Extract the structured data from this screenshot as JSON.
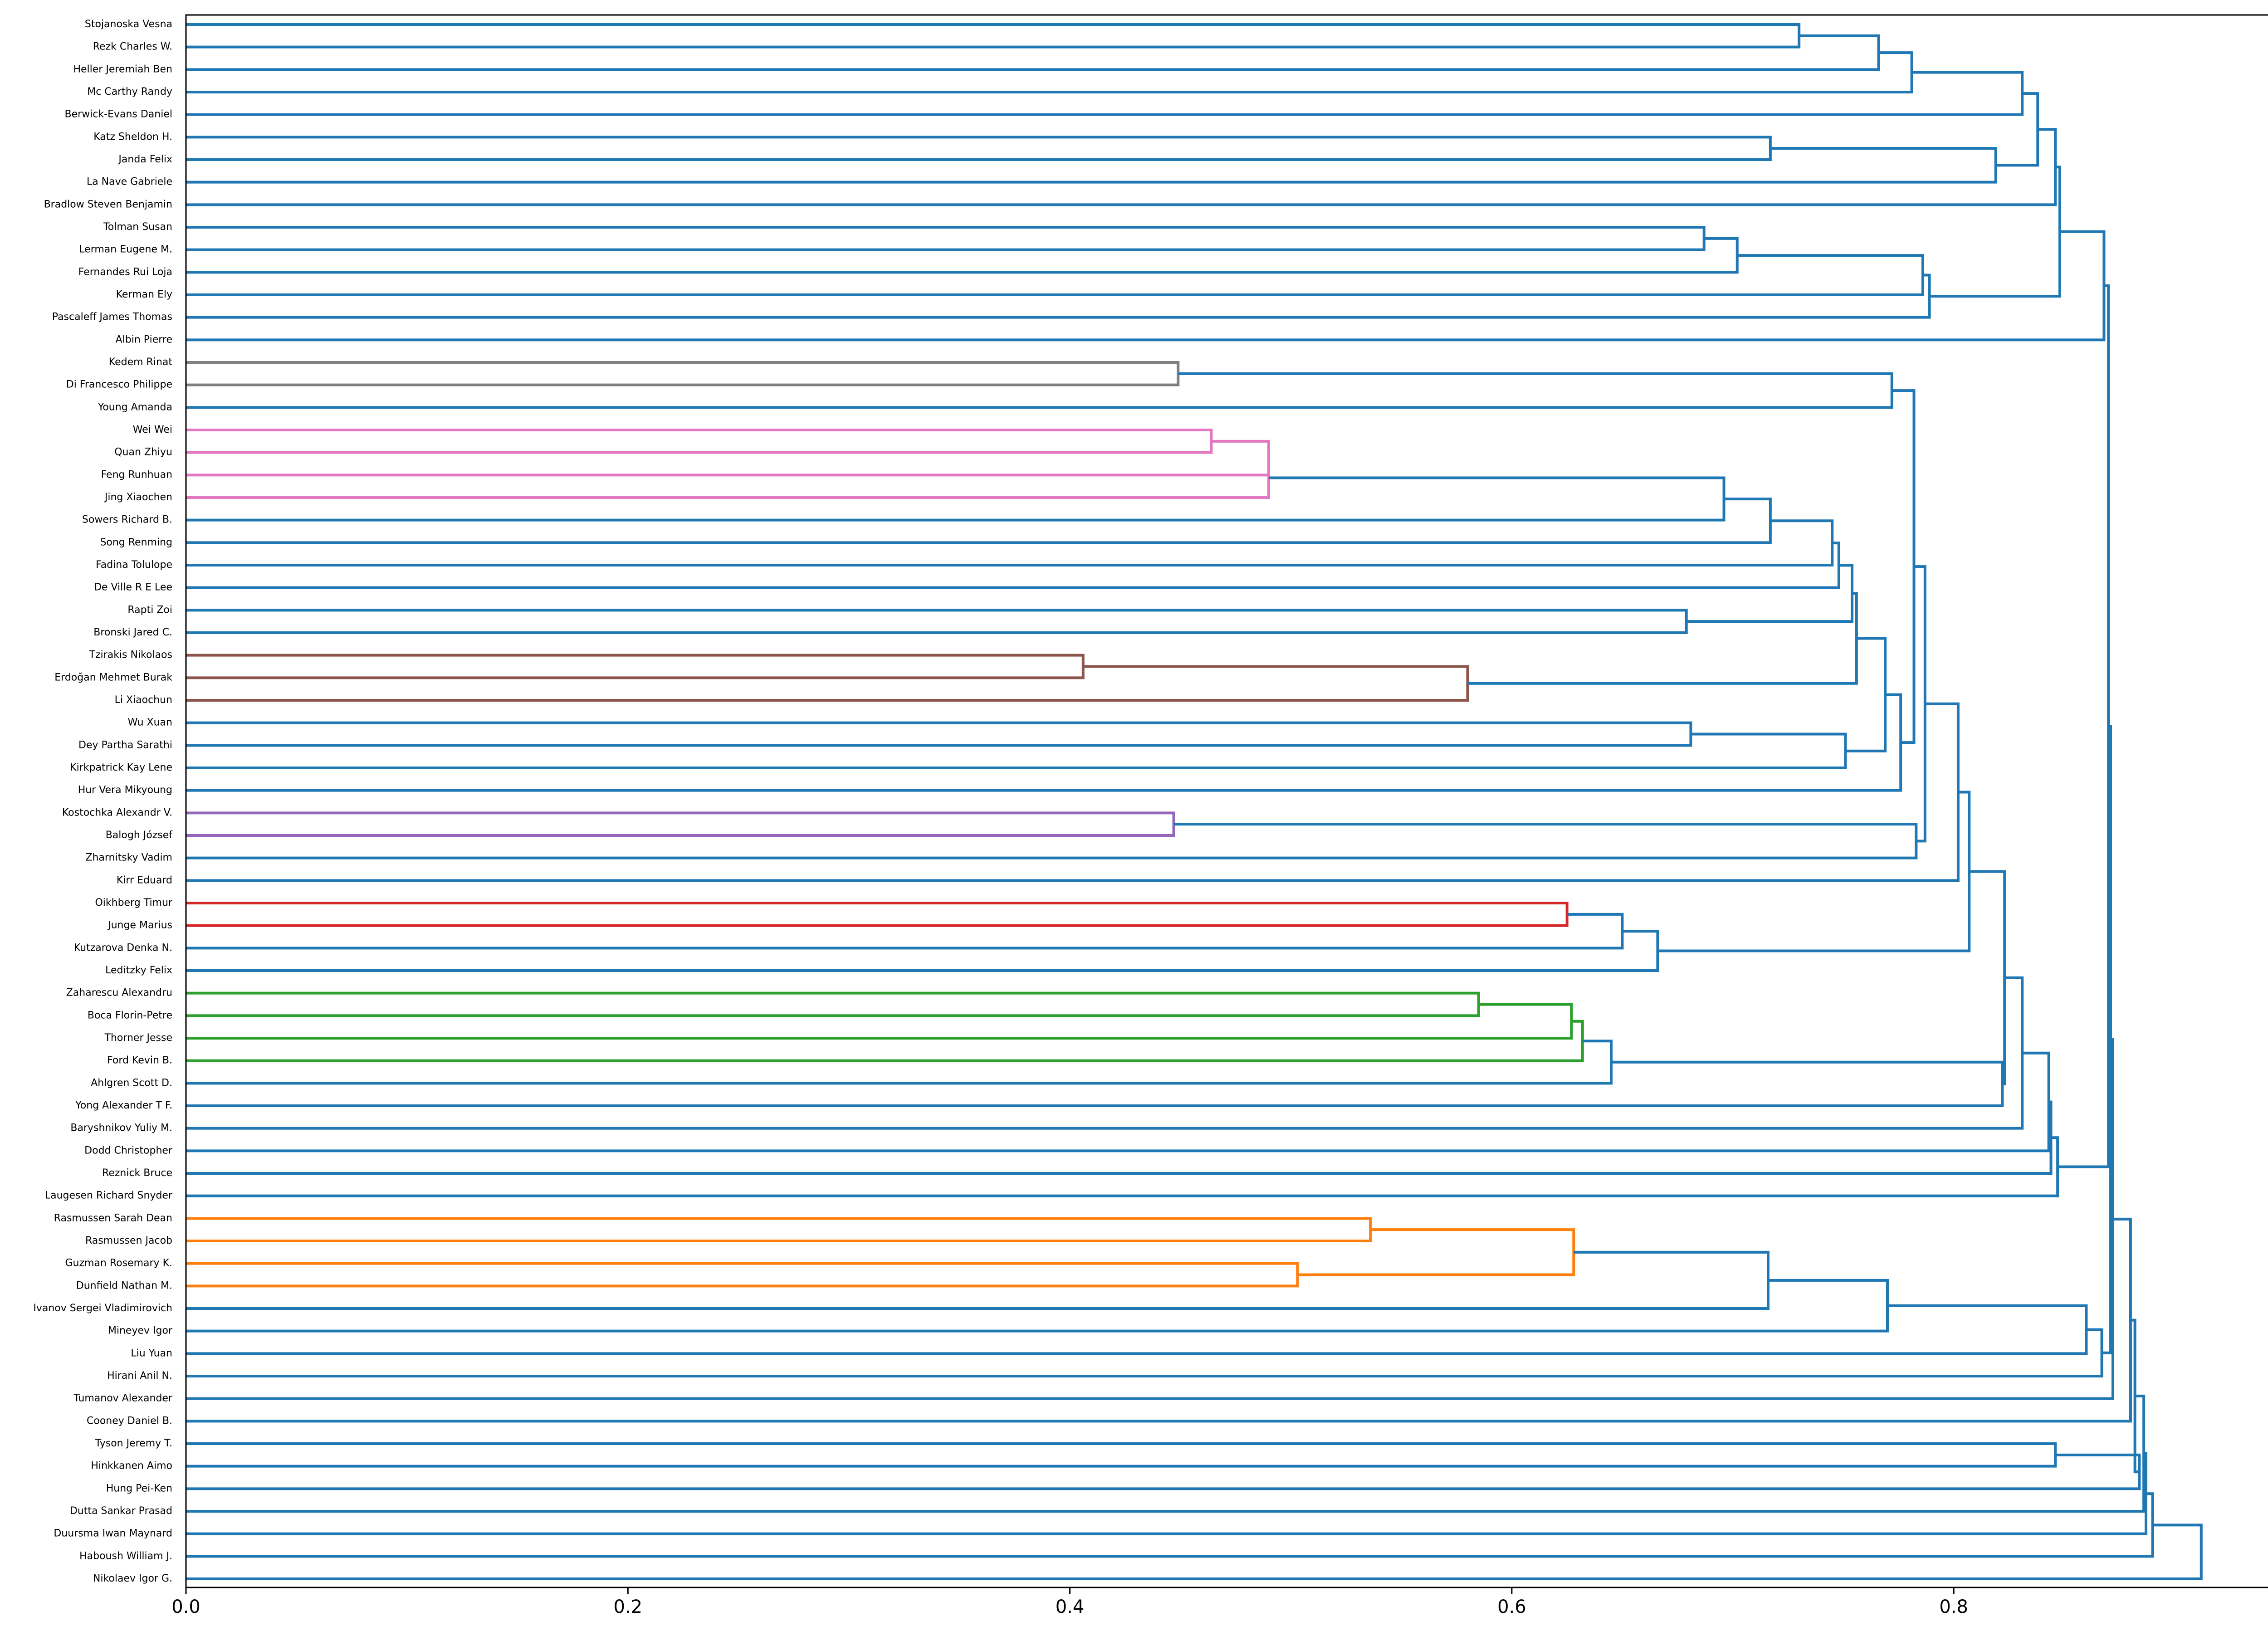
{
  "chart_data": {
    "type": "dendrogram",
    "orientation": "horizontal",
    "xlim": [
      0.0,
      0.957
    ],
    "x_ticks": [
      0.0,
      0.2,
      0.4,
      0.6,
      0.8
    ],
    "x_tick_labels": [
      "0.0",
      "0.2",
      "0.4",
      "0.6",
      "0.8"
    ],
    "title": "",
    "xlabel": "",
    "ylabel": "",
    "grid": false,
    "colors": {
      "default": "#1f77b4",
      "orange": "#ff7f0e",
      "green": "#2ca02c",
      "red": "#d62728",
      "purple": "#9467bd",
      "brown": "#8c564b",
      "pink": "#e377c2",
      "gray": "#7f7f7f"
    },
    "leaves": [
      "Stojanoska Vesna",
      "Rezk Charles W.",
      "Heller Jeremiah Ben",
      "Mc Carthy Randy",
      "Berwick-Evans Daniel",
      "Katz Sheldon H.",
      "Janda Felix",
      "La Nave Gabriele",
      "Bradlow Steven Benjamin",
      "Tolman Susan",
      "Lerman Eugene M.",
      "Fernandes Rui Loja",
      "Kerman Ely",
      "Pascaleff James Thomas",
      "Albin Pierre",
      "Kedem Rinat",
      "Di Francesco Philippe",
      "Young Amanda",
      "Wei Wei",
      "Quan Zhiyu",
      "Feng Runhuan",
      "Jing Xiaochen",
      "Sowers Richard B.",
      "Song Renming",
      "Fadina Tolulope",
      "De Ville R E Lee",
      "Rapti Zoi",
      "Bronski Jared C.",
      "Tzirakis Nikolaos",
      "Erdoğan Mehmet Burak",
      "Li Xiaochun",
      "Wu Xuan",
      "Dey Partha Sarathi",
      "Kirkpatrick Kay Lene",
      "Hur Vera Mikyoung",
      "Kostochka Alexandr V.",
      "Balogh József",
      "Zharnitsky Vadim",
      "Kirr Eduard",
      "Oikhberg Timur",
      "Junge Marius",
      "Kutzarova Denka N.",
      "Leditzky Felix",
      "Zaharescu Alexandru",
      "Boca Florin-Petre",
      "Thorner Jesse",
      "Ford Kevin B.",
      "Ahlgren Scott D.",
      "Yong Alexander T F.",
      "Baryshnikov Yuliy M.",
      "Dodd Christopher",
      "Reznick Bruce",
      "Laugesen Richard Snyder",
      "Rasmussen Sarah Dean",
      "Rasmussen Jacob",
      "Guzman Rosemary K.",
      "Dunfield Nathan M.",
      "Ivanov Sergei Vladimirovich",
      "Mineyev Igor",
      "Liu Yuan",
      "Hirani Anil N.",
      "Tumanov Alexander",
      "Cooney Daniel B.",
      "Tyson Jeremy T.",
      "Hinkkanen Aimo",
      "Hung Pei-Ken",
      "Dutta Sankar Prasad",
      "Duursma Iwan Maynard",
      "Haboush William J.",
      "Nikolaev Igor G."
    ],
    "merges": [
      {
        "a": "L0",
        "b": "L1",
        "h": 0.73,
        "c": "default"
      },
      {
        "a": "M0",
        "b": "L2",
        "h": 0.766,
        "c": "default"
      },
      {
        "a": "M1",
        "b": "L3",
        "h": 0.781,
        "c": "default"
      },
      {
        "a": "M2",
        "b": "L4",
        "h": 0.831,
        "c": "default"
      },
      {
        "a": "L5",
        "b": "L6",
        "h": 0.717,
        "c": "default"
      },
      {
        "a": "M4",
        "b": "L7",
        "h": 0.819,
        "c": "default"
      },
      {
        "a": "M3",
        "b": "M5",
        "h": 0.838,
        "c": "default"
      },
      {
        "a": "M6",
        "b": "L8",
        "h": 0.846,
        "c": "default"
      },
      {
        "a": "L9",
        "b": "L10",
        "h": 0.687,
        "c": "default"
      },
      {
        "a": "M8",
        "b": "L11",
        "h": 0.702,
        "c": "default"
      },
      {
        "a": "M9",
        "b": "L12",
        "h": 0.786,
        "c": "default"
      },
      {
        "a": "M10",
        "b": "L13",
        "h": 0.789,
        "c": "default"
      },
      {
        "a": "M7",
        "b": "M11",
        "h": 0.848,
        "c": "default"
      },
      {
        "a": "M12",
        "b": "L14",
        "h": 0.868,
        "c": "default"
      },
      {
        "a": "L15",
        "b": "L16",
        "h": 0.449,
        "c": "gray"
      },
      {
        "a": "M14",
        "b": "L17",
        "h": 0.772,
        "c": "default"
      },
      {
        "a": "L18",
        "b": "L19",
        "h": 0.464,
        "c": "pink"
      },
      {
        "a": "M16",
        "b": "L20",
        "h": 0.49,
        "c": "pink"
      },
      {
        "a": "M17",
        "b": "L21",
        "h": 0.49,
        "c": "pink"
      },
      {
        "a": "M18",
        "b": "L22",
        "h": 0.696,
        "c": "default"
      },
      {
        "a": "M19",
        "b": "L23",
        "h": 0.717,
        "c": "default"
      },
      {
        "a": "M20",
        "b": "L24",
        "h": 0.745,
        "c": "default"
      },
      {
        "a": "M21",
        "b": "L25",
        "h": 0.748,
        "c": "default"
      },
      {
        "a": "L26",
        "b": "L27",
        "h": 0.679,
        "c": "default"
      },
      {
        "a": "M22",
        "b": "M23",
        "h": 0.754,
        "c": "default"
      },
      {
        "a": "L28",
        "b": "L29",
        "h": 0.406,
        "c": "brown"
      },
      {
        "a": "M25",
        "b": "L30",
        "h": 0.58,
        "c": "brown"
      },
      {
        "a": "M24",
        "b": "M26",
        "h": 0.756,
        "c": "default"
      },
      {
        "a": "L31",
        "b": "L32",
        "h": 0.681,
        "c": "default"
      },
      {
        "a": "M28",
        "b": "L33",
        "h": 0.751,
        "c": "default"
      },
      {
        "a": "M27",
        "b": "M29",
        "h": 0.769,
        "c": "default"
      },
      {
        "a": "M30",
        "b": "L34",
        "h": 0.776,
        "c": "default"
      },
      {
        "a": "M15",
        "b": "M31",
        "h": 0.782,
        "c": "default"
      },
      {
        "a": "L35",
        "b": "L36",
        "h": 0.447,
        "c": "purple"
      },
      {
        "a": "M33",
        "b": "L37",
        "h": 0.783,
        "c": "default"
      },
      {
        "a": "M32",
        "b": "M34",
        "h": 0.787,
        "c": "default"
      },
      {
        "a": "M35",
        "b": "L38",
        "h": 0.802,
        "c": "default"
      },
      {
        "a": "L39",
        "b": "L40",
        "h": 0.625,
        "c": "red"
      },
      {
        "a": "M37",
        "b": "L41",
        "h": 0.65,
        "c": "default"
      },
      {
        "a": "M38",
        "b": "L42",
        "h": 0.666,
        "c": "default"
      },
      {
        "a": "M36",
        "b": "M39",
        "h": 0.807,
        "c": "default"
      },
      {
        "a": "L43",
        "b": "L44",
        "h": 0.585,
        "c": "green"
      },
      {
        "a": "M41",
        "b": "L45",
        "h": 0.627,
        "c": "green"
      },
      {
        "a": "M42",
        "b": "L46",
        "h": 0.632,
        "c": "green"
      },
      {
        "a": "M43",
        "b": "L47",
        "h": 0.645,
        "c": "default"
      },
      {
        "a": "M44",
        "b": "L48",
        "h": 0.822,
        "c": "default"
      },
      {
        "a": "M40",
        "b": "M45",
        "h": 0.823,
        "c": "default"
      },
      {
        "a": "M46",
        "b": "L49",
        "h": 0.831,
        "c": "default"
      },
      {
        "a": "M47",
        "b": "L50",
        "h": 0.843,
        "c": "default"
      },
      {
        "a": "M48",
        "b": "L51",
        "h": 0.844,
        "c": "default"
      },
      {
        "a": "M49",
        "b": "L52",
        "h": 0.847,
        "c": "default"
      },
      {
        "a": "L53",
        "b": "L54",
        "h": 0.536,
        "c": "orange"
      },
      {
        "a": "L55",
        "b": "L56",
        "h": 0.503,
        "c": "orange"
      },
      {
        "a": "M51",
        "b": "M52",
        "h": 0.628,
        "c": "orange"
      },
      {
        "a": "M53",
        "b": "L57",
        "h": 0.716,
        "c": "default"
      },
      {
        "a": "M54",
        "b": "L58",
        "h": 0.77,
        "c": "default"
      },
      {
        "a": "M55",
        "b": "L59",
        "h": 0.86,
        "c": "default"
      },
      {
        "a": "M56",
        "b": "L60",
        "h": 0.867,
        "c": "default"
      },
      {
        "a": "M13",
        "b": "M50",
        "h": 0.87,
        "c": "default"
      },
      {
        "a": "M58",
        "b": "M57",
        "h": 0.871,
        "c": "default"
      },
      {
        "a": "M59",
        "b": "L61",
        "h": 0.872,
        "c": "default"
      },
      {
        "a": "M60",
        "b": "L62",
        "h": 0.88,
        "c": "default"
      },
      {
        "a": "L63",
        "b": "L64",
        "h": 0.846,
        "c": "default"
      },
      {
        "a": "M62",
        "b": "L65",
        "h": 0.884,
        "c": "default"
      },
      {
        "a": "M61",
        "b": "M63",
        "h": 0.882,
        "c": "default"
      },
      {
        "a": "M64",
        "b": "L66",
        "h": 0.886,
        "c": "default"
      },
      {
        "a": "M65",
        "b": "L67",
        "h": 0.887,
        "c": "default"
      },
      {
        "a": "M66",
        "b": "L68",
        "h": 0.89,
        "c": "default"
      },
      {
        "a": "M67",
        "b": "L69",
        "h": 0.912,
        "c": "default"
      }
    ]
  }
}
